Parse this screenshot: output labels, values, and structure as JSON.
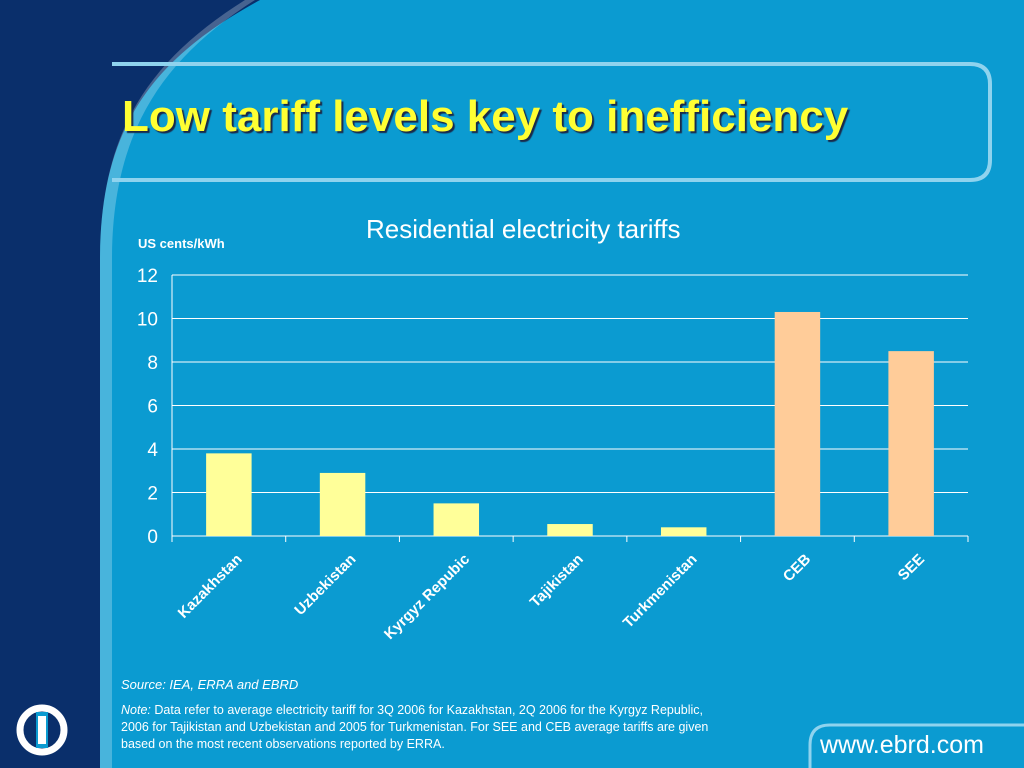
{
  "slide": {
    "title": "Low tariff levels key to inefficiency",
    "source": "Source: IEA, ERRA and EBRD",
    "note_label": "Note:",
    "note_text": "Data refer to average electricity tariff for 3Q 2006 for Kazakhstan, 2Q 2006 for the Kyrgyz Republic, 2006 for Tajikistan and Uzbekistan and 2005 for Turkmenistan. For SEE and CEB average tariffs are given based on the most recent observations reported by ERRA.",
    "website": "www.ebrd.com",
    "logo_icon": "ebrd-logo-icon"
  },
  "colors": {
    "background": "#0b9bd1",
    "dark_blue": "#0a2f6b",
    "title": "#ffff33",
    "bar_cis": "#ffff99",
    "bar_benchmark": "#ffcc99",
    "gridline": "#ffffff"
  },
  "chart_data": {
    "type": "bar",
    "title": "Residential electricity tariffs",
    "ylabel": "US cents/kWh",
    "xlabel": "",
    "categories": [
      "Kazakhstan",
      "Uzbekistan",
      "Kyrgyz Repubic",
      "Tajikistan",
      "Turkmenistan",
      "CEB",
      "SEE"
    ],
    "values": [
      3.8,
      2.9,
      1.5,
      0.55,
      0.4,
      10.3,
      8.5
    ],
    "bar_colors": [
      "#ffff99",
      "#ffff99",
      "#ffff99",
      "#ffff99",
      "#ffff99",
      "#ffcc99",
      "#ffcc99"
    ],
    "ylim": [
      0,
      12
    ],
    "yticks": [
      0,
      2,
      4,
      6,
      8,
      10,
      12
    ],
    "grid": true,
    "legend": "none"
  }
}
